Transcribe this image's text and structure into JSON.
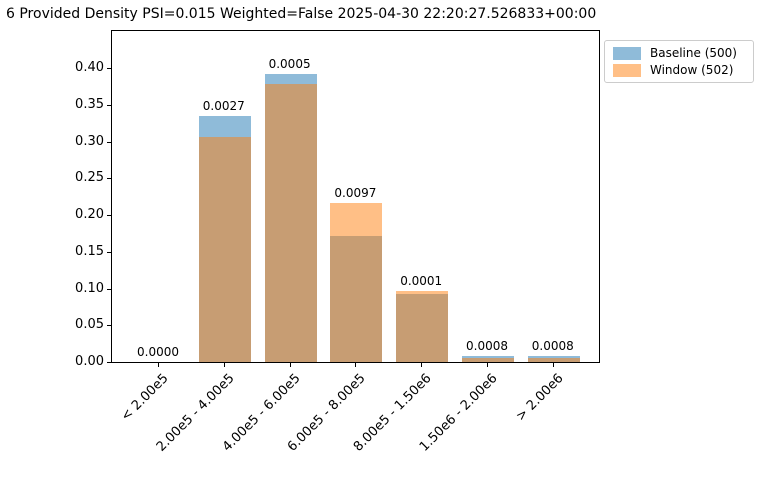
{
  "chart_data": {
    "type": "bar",
    "title": "6 Provided Density PSI=0.015 Weighted=False 2025-04-30 22:20:27.526833+00:00",
    "categories": [
      "< 2.00e5",
      "2.00e5 - 4.00e5",
      "4.00e5 - 6.00e5",
      "6.00e5 - 8.00e5",
      "8.00e5 - 1.50e6",
      "1.50e6 - 2.00e6",
      "> 2.00e6"
    ],
    "series": [
      {
        "name": "Baseline (500)",
        "color": "#1f77b4",
        "alpha": 0.5,
        "values": [
          0.0,
          0.335,
          0.392,
          0.172,
          0.092,
          0.008,
          0.008
        ]
      },
      {
        "name": "Window (502)",
        "color": "#ff7f0e",
        "alpha": 0.5,
        "values": [
          0.0,
          0.306,
          0.378,
          0.216,
          0.096,
          0.006,
          0.006
        ]
      }
    ],
    "bar_annotations": [
      "0.0000",
      "0.0027",
      "0.0005",
      "0.0097",
      "0.0001",
      "0.0008",
      "0.0008"
    ],
    "yticks": [
      "0.00",
      "0.05",
      "0.10",
      "0.15",
      "0.20",
      "0.25",
      "0.30",
      "0.35",
      "0.40"
    ],
    "ylim": [
      0,
      0.452
    ],
    "xlabel": "",
    "ylabel": "",
    "grid": false,
    "legend_position": "upper-right-outside",
    "overlap_color": "#c79d74",
    "psi_value": "0.015",
    "weighted": "False",
    "timestamp": "2025-04-30 22:20:27.526833+00:00"
  }
}
